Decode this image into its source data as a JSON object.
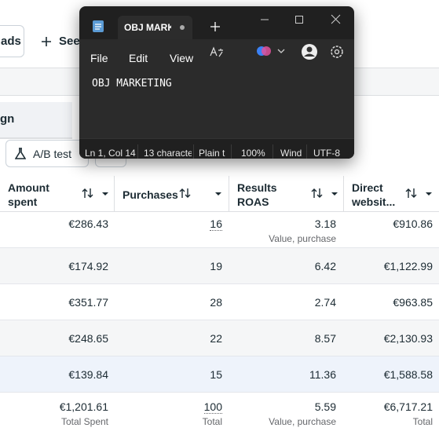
{
  "background": {
    "top_buttons": [
      "ads",
      "See"
    ],
    "tab": "gn",
    "ab_test": "A/B test"
  },
  "table": {
    "headers": [
      [
        "Amount",
        "spent"
      ],
      [
        "Purchases"
      ],
      [
        "Results",
        "ROAS"
      ],
      [
        "Direct",
        "websit..."
      ]
    ],
    "rows": [
      {
        "cells": [
          "€286.43",
          "16",
          "3.18",
          "€910.86"
        ],
        "note": "Value, purchase"
      },
      {
        "cells": [
          "€174.92",
          "19",
          "6.42",
          "€1,122.99"
        ]
      },
      {
        "cells": [
          "€351.77",
          "28",
          "2.74",
          "€963.85"
        ]
      },
      {
        "cells": [
          "€248.65",
          "22",
          "8.57",
          "€2,130.93"
        ]
      },
      {
        "cells": [
          "€139.84",
          "15",
          "11.36",
          "€1,588.58"
        ]
      }
    ],
    "total": {
      "cells": [
        "€1,201.61",
        "100",
        "5.59",
        "€6,717.21"
      ],
      "labels": [
        "Total Spent",
        "Total",
        "Value, purchase",
        "Total"
      ]
    }
  },
  "notepad": {
    "tab_title": "OBJ MARK",
    "menu": [
      "File",
      "Edit",
      "View"
    ],
    "content": "OBJ MARKETING",
    "status": [
      "Ln 1, Col 14",
      "13 characte",
      "Plain t",
      "100%",
      "Wind",
      "UTF-8"
    ]
  }
}
